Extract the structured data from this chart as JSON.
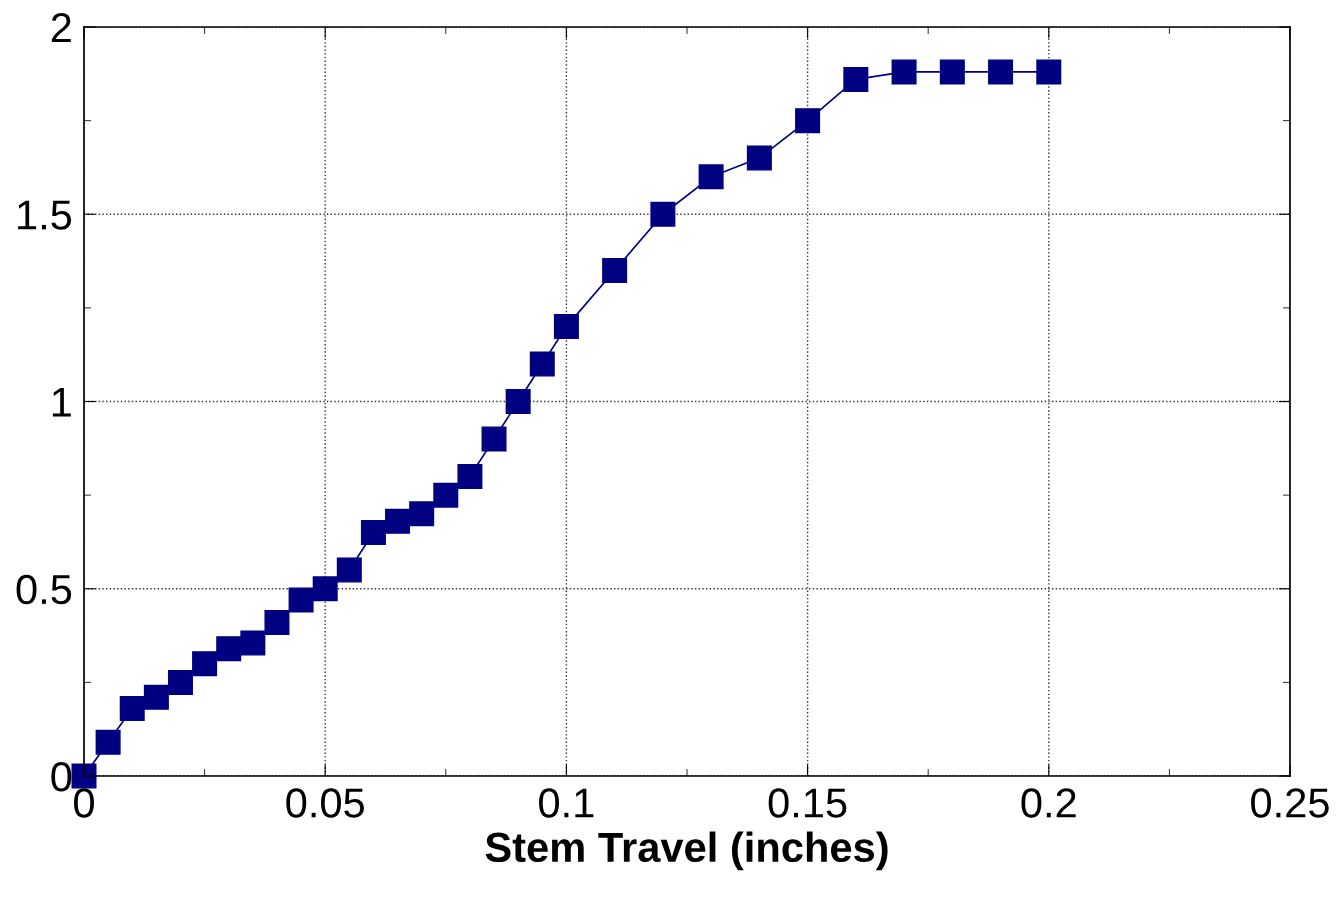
{
  "chart_data": {
    "type": "line",
    "xlabel": "Stem Travel (inches)",
    "x": [
      0,
      0.005,
      0.01,
      0.015,
      0.02,
      0.025,
      0.03,
      0.035,
      0.04,
      0.045,
      0.05,
      0.055,
      0.06,
      0.065,
      0.07,
      0.075,
      0.08,
      0.085,
      0.09,
      0.095,
      0.1,
      0.11,
      0.12,
      0.13,
      0.14,
      0.15,
      0.16,
      0.17,
      0.18,
      0.19,
      0.2
    ],
    "series": [
      {
        "color": "#000080",
        "values": [
          0,
          0.09,
          0.18,
          0.21,
          0.25,
          0.3,
          0.34,
          0.355,
          0.41,
          0.47,
          0.5,
          0.55,
          0.65,
          0.68,
          0.7,
          0.75,
          0.8,
          0.9,
          1.0,
          1.1,
          1.2,
          1.35,
          1.5,
          1.6,
          1.65,
          1.75,
          1.86,
          1.88,
          1.88,
          1.88,
          1.88
        ]
      }
    ],
    "marker": "square",
    "line_style": "solid",
    "grid": true,
    "xlim": [
      0,
      0.25
    ],
    "ylim": [
      0,
      2
    ],
    "xticks": [
      0,
      {
        "value": 0.025,
        "label": null
      },
      0.05,
      {
        "value": 0.075,
        "label": null
      },
      0.1,
      {
        "value": 0.125,
        "label": null
      },
      0.15,
      {
        "value": 0.175,
        "label": null
      },
      0.2,
      {
        "value": 0.225,
        "label": null
      },
      0.25
    ],
    "yticks": [
      0,
      {
        "value": 0.25,
        "label": null
      },
      0.5,
      {
        "value": 0.75,
        "label": null
      },
      1,
      {
        "value": 1.25,
        "label": null
      },
      1.5,
      {
        "value": 1.75,
        "label": null
      },
      2
    ]
  }
}
